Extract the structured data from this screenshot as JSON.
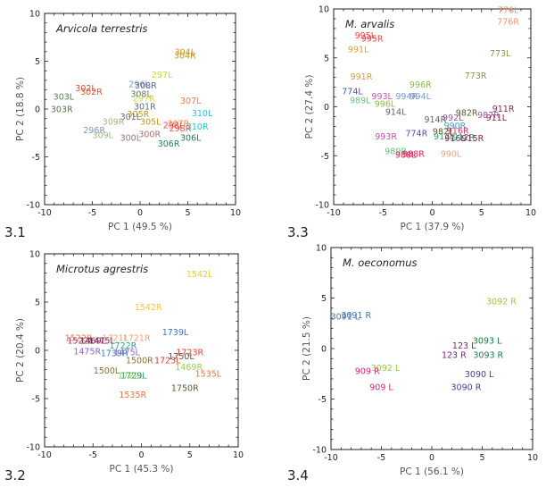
{
  "chart_data": [
    {
      "type": "scatter",
      "panel_number": "3.1",
      "title": "Arvicola terrestris",
      "xlabel": "PC 1 (49.5 %)",
      "ylabel": "PC 2 (18.8 %)",
      "xlim": [
        -10,
        10
      ],
      "ylim": [
        -10,
        10
      ],
      "xticks": [
        -10,
        -5,
        0,
        5,
        10
      ],
      "yticks": [
        -10,
        -5,
        0,
        5,
        10
      ],
      "grid": false,
      "points": [
        {
          "label": "304L",
          "x": 4.7,
          "y": 6.0,
          "color": "#c8961e"
        },
        {
          "label": "304R",
          "x": 4.7,
          "y": 5.6,
          "color": "#c8961e"
        },
        {
          "label": "297L",
          "x": 2.3,
          "y": 3.6,
          "color": "#c8dc32"
        },
        {
          "label": "302L",
          "x": -5.7,
          "y": 2.2,
          "color": "#e0502a"
        },
        {
          "label": "302R",
          "x": -5.1,
          "y": 1.8,
          "color": "#e0502a"
        },
        {
          "label": "303L",
          "x": -8.0,
          "y": 1.3,
          "color": "#5a7a4a"
        },
        {
          "label": "303R",
          "x": -8.2,
          "y": 0.0,
          "color": "#5a7a4a"
        },
        {
          "label": "296L",
          "x": -0.1,
          "y": 2.6,
          "color": "#7f96c8"
        },
        {
          "label": "308R",
          "x": 0.6,
          "y": 2.5,
          "color": "#5e6e82"
        },
        {
          "label": "308L",
          "x": 0.1,
          "y": 1.6,
          "color": "#5e6e82"
        },
        {
          "label": "297R",
          "x": 0.4,
          "y": 1.1,
          "color": "#c8dc32"
        },
        {
          "label": "301R",
          "x": 0.5,
          "y": 0.3,
          "color": "#5e6e82"
        },
        {
          "label": "307L",
          "x": 5.3,
          "y": 0.9,
          "color": "#f08050"
        },
        {
          "label": "310L",
          "x": 6.5,
          "y": -0.4,
          "color": "#1ec8dc"
        },
        {
          "label": "305R",
          "x": -0.2,
          "y": -0.5,
          "color": "#c8961e"
        },
        {
          "label": "301L",
          "x": -1.0,
          "y": -0.8,
          "color": "#5e6e82"
        },
        {
          "label": "305L",
          "x": 1.1,
          "y": -1.3,
          "color": "#c8961e"
        },
        {
          "label": "309R",
          "x": -2.8,
          "y": -1.3,
          "color": "#a0b482"
        },
        {
          "label": "307R",
          "x": 4.0,
          "y": -1.5,
          "color": "#f08050"
        },
        {
          "label": "298L",
          "x": 3.5,
          "y": -1.7,
          "color": "#e85050"
        },
        {
          "label": "298R",
          "x": 4.2,
          "y": -2.0,
          "color": "#e85050"
        },
        {
          "label": "310R",
          "x": 6.0,
          "y": -1.8,
          "color": "#1ec8dc"
        },
        {
          "label": "296R",
          "x": -4.8,
          "y": -2.2,
          "color": "#7f96c8"
        },
        {
          "label": "309L",
          "x": -3.9,
          "y": -2.7,
          "color": "#a0b482"
        },
        {
          "label": "300R",
          "x": 1.0,
          "y": -2.6,
          "color": "#a07070"
        },
        {
          "label": "300L",
          "x": -1.0,
          "y": -3.0,
          "color": "#a07070"
        },
        {
          "label": "306L",
          "x": 5.3,
          "y": -3.0,
          "color": "#1e8250"
        },
        {
          "label": "306R",
          "x": 3.0,
          "y": -3.6,
          "color": "#1e8250"
        }
      ]
    },
    {
      "type": "scatter",
      "panel_number": "3.3",
      "title": "M. arvalis",
      "xlabel": "PC 1 (37.9 %)",
      "ylabel": "PC 2 (27.4 %)",
      "xlim": [
        -10,
        10
      ],
      "ylim": [
        -10,
        10
      ],
      "xticks": [
        -10,
        -5,
        0,
        5,
        10
      ],
      "yticks": [
        -10,
        -5,
        0,
        5,
        10
      ],
      "grid": false,
      "points": [
        {
          "label": "776L",
          "x": 7.7,
          "y": 9.9,
          "color": "#f0966e"
        },
        {
          "label": "776R",
          "x": 7.7,
          "y": 8.7,
          "color": "#f0966e"
        },
        {
          "label": "995L",
          "x": -6.8,
          "y": 7.3,
          "color": "#f03c3c"
        },
        {
          "label": "995R",
          "x": -6.1,
          "y": 7.0,
          "color": "#f03c3c"
        },
        {
          "label": "991L",
          "x": -7.5,
          "y": 5.9,
          "color": "#d2a03c"
        },
        {
          "label": "773L",
          "x": 6.9,
          "y": 5.5,
          "color": "#8c9646"
        },
        {
          "label": "773R",
          "x": 4.4,
          "y": 3.2,
          "color": "#8c9646"
        },
        {
          "label": "991R",
          "x": -7.2,
          "y": 3.1,
          "color": "#d2a03c"
        },
        {
          "label": "996R",
          "x": -1.2,
          "y": 2.3,
          "color": "#8cbe46"
        },
        {
          "label": "774L",
          "x": -8.1,
          "y": 1.6,
          "color": "#5a50aa"
        },
        {
          "label": "993L",
          "x": -5.1,
          "y": 1.1,
          "color": "#c84bb4"
        },
        {
          "label": "994R",
          "x": -2.6,
          "y": 1.1,
          "color": "#7896d2"
        },
        {
          "label": "994L",
          "x": -1.2,
          "y": 1.1,
          "color": "#7896d2"
        },
        {
          "label": "989L",
          "x": -7.3,
          "y": 0.7,
          "color": "#64c382"
        },
        {
          "label": "996L",
          "x": -4.8,
          "y": 0.3,
          "color": "#8cbe46"
        },
        {
          "label": "914L",
          "x": -3.7,
          "y": -0.5,
          "color": "#646464"
        },
        {
          "label": "982R",
          "x": 3.5,
          "y": -0.6,
          "color": "#5a5a28"
        },
        {
          "label": "911R",
          "x": 7.2,
          "y": -0.2,
          "color": "#8c2846"
        },
        {
          "label": "987R",
          "x": 5.7,
          "y": -0.8,
          "color": "#965aa0"
        },
        {
          "label": "911L",
          "x": 6.5,
          "y": -1.1,
          "color": "#8c2846"
        },
        {
          "label": "914R",
          "x": 0.3,
          "y": -1.3,
          "color": "#646464"
        },
        {
          "label": "992L",
          "x": 2.1,
          "y": -1.1,
          "color": "#965aa0"
        },
        {
          "label": "990R",
          "x": 2.3,
          "y": -1.9,
          "color": "#3ca0c8"
        },
        {
          "label": "982L",
          "x": 1.1,
          "y": -2.5,
          "color": "#5a5a28"
        },
        {
          "label": "916R",
          "x": 2.6,
          "y": -2.4,
          "color": "#e62864"
        },
        {
          "label": "774R",
          "x": -1.6,
          "y": -2.7,
          "color": "#5a50aa"
        },
        {
          "label": "912L",
          "x": 1.2,
          "y": -3.0,
          "color": "#28a082"
        },
        {
          "label": "916L",
          "x": 2.3,
          "y": -3.2,
          "color": "#8c1e3c"
        },
        {
          "label": "912R",
          "x": 3.2,
          "y": -3.1,
          "color": "#28a082"
        },
        {
          "label": "915R",
          "x": 4.1,
          "y": -3.2,
          "color": "#8c1e3c"
        },
        {
          "label": "993R",
          "x": -4.7,
          "y": -3.0,
          "color": "#c84bb4"
        },
        {
          "label": "989R",
          "x": -3.7,
          "y": -4.5,
          "color": "#64c382"
        },
        {
          "label": "990L",
          "x": 1.9,
          "y": -4.8,
          "color": "#e1aa82"
        },
        {
          "label": "988R",
          "x": -1.9,
          "y": -4.8,
          "color": "#e61e50"
        },
        {
          "label": "988L",
          "x": -2.7,
          "y": -4.9,
          "color": "#e61e50"
        }
      ]
    },
    {
      "type": "scatter",
      "panel_number": "3.2",
      "title": "Microtus agrestris",
      "xlabel": "PC 1 (45.3 %)",
      "ylabel": "PC 2 (20.4 %)",
      "xlim": [
        -10,
        10
      ],
      "ylim": [
        -10,
        10
      ],
      "xticks": [
        -10,
        -5,
        0,
        5,
        10
      ],
      "yticks": [
        -10,
        -5,
        0,
        5,
        10
      ],
      "grid": false,
      "points": [
        {
          "label": "1542L",
          "x": 6.0,
          "y": 7.9,
          "color": "#f5c832"
        },
        {
          "label": "1542R",
          "x": 0.7,
          "y": 4.5,
          "color": "#f5c832"
        },
        {
          "label": "1739L",
          "x": 3.5,
          "y": 1.9,
          "color": "#3c78c8"
        },
        {
          "label": "1522R",
          "x": -6.5,
          "y": 1.3,
          "color": "#e67850"
        },
        {
          "label": "1721L",
          "x": -2.7,
          "y": 1.3,
          "color": "#f5a082"
        },
        {
          "label": "1721R",
          "x": -0.5,
          "y": 1.3,
          "color": "#f5a082"
        },
        {
          "label": "1522L",
          "x": -6.3,
          "y": 1.0,
          "color": "#a03c5a"
        },
        {
          "label": "1469L",
          "x": -5.0,
          "y": 1.0,
          "color": "#781e50"
        },
        {
          "label": "1475L",
          "x": -4.1,
          "y": 1.0,
          "color": "#781e50"
        },
        {
          "label": "1722R",
          "x": -1.9,
          "y": 0.5,
          "color": "#28a09b"
        },
        {
          "label": "1475R",
          "x": -5.6,
          "y": -0.1,
          "color": "#8c64c3"
        },
        {
          "label": "1739R",
          "x": -2.8,
          "y": -0.3,
          "color": "#3c78c8"
        },
        {
          "label": "1475L",
          "x": -1.5,
          "y": -0.2,
          "color": "#8c64c3"
        },
        {
          "label": "1723R",
          "x": 5.0,
          "y": -0.2,
          "color": "#dc3c3c"
        },
        {
          "label": "1750L",
          "x": 4.1,
          "y": -0.6,
          "color": "#5a5a3c"
        },
        {
          "label": "1500R",
          "x": -0.2,
          "y": -1.0,
          "color": "#8c6e32"
        },
        {
          "label": "1723L",
          "x": 2.7,
          "y": -1.0,
          "color": "#dc3c3c"
        },
        {
          "label": "1469R",
          "x": 4.9,
          "y": -1.7,
          "color": "#96d246"
        },
        {
          "label": "1535L",
          "x": 6.9,
          "y": -2.4,
          "color": "#e6733c"
        },
        {
          "label": "1500L",
          "x": -3.6,
          "y": -2.1,
          "color": "#8c6e32"
        },
        {
          "label": "1722L",
          "x": -1.1,
          "y": -2.6,
          "color": "#96d246"
        },
        {
          "label": "1729L",
          "x": -0.8,
          "y": -2.6,
          "color": "#28a064"
        },
        {
          "label": "1750R",
          "x": 4.5,
          "y": -3.9,
          "color": "#5a5a3c"
        },
        {
          "label": "1535R",
          "x": -0.9,
          "y": -4.6,
          "color": "#e6733c"
        }
      ]
    },
    {
      "type": "scatter",
      "panel_number": "3.4",
      "title": "M. oeconomus",
      "xlabel": "PC 1 (56.1 %)",
      "ylabel": "PC 2 (21.5 %)",
      "xlim": [
        -10,
        10
      ],
      "ylim": [
        -10,
        10
      ],
      "xticks": [
        -10,
        -5,
        0,
        5,
        10
      ],
      "yticks": [
        -10,
        -5,
        0,
        5,
        10
      ],
      "grid": false,
      "points": [
        {
          "label": "3092 R",
          "x": 6.9,
          "y": 4.7,
          "color": "#96c83c"
        },
        {
          "label": "3091 L",
          "x": -8.6,
          "y": 3.2,
          "color": "#3c78b4"
        },
        {
          "label": "3091 R",
          "x": -7.5,
          "y": 3.3,
          "color": "#3c78b4"
        },
        {
          "label": "3093 L",
          "x": 5.5,
          "y": 0.8,
          "color": "#1e7846"
        },
        {
          "label": "123 L",
          "x": 3.2,
          "y": 0.3,
          "color": "#781e78"
        },
        {
          "label": "123 R",
          "x": 2.2,
          "y": -0.6,
          "color": "#781e78"
        },
        {
          "label": "3093 R",
          "x": 5.6,
          "y": -0.6,
          "color": "#1e7846"
        },
        {
          "label": "3092 L",
          "x": -4.6,
          "y": -1.9,
          "color": "#96c83c"
        },
        {
          "label": "909 R",
          "x": -6.4,
          "y": -2.2,
          "color": "#e61e78"
        },
        {
          "label": "3090 L",
          "x": 4.7,
          "y": -2.5,
          "color": "#463ca0"
        },
        {
          "label": "909 L",
          "x": -5.0,
          "y": -3.8,
          "color": "#e61e78"
        },
        {
          "label": "3090 R",
          "x": 3.4,
          "y": -3.8,
          "color": "#463ca0"
        }
      ]
    }
  ]
}
